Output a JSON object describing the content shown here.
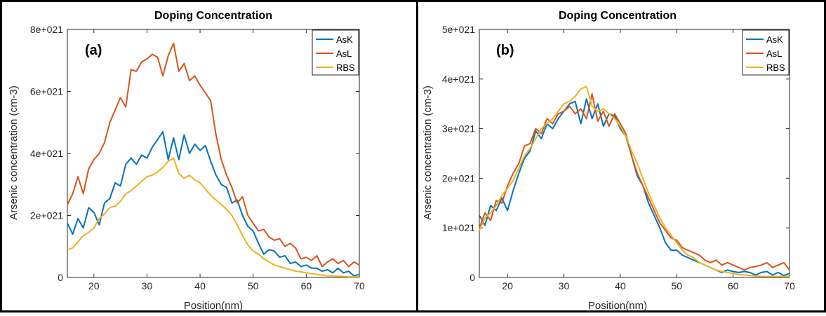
{
  "colors": {
    "AsK": "#0072BD",
    "AsL": "#D95319",
    "RBS": "#EDB120",
    "border": "#000000",
    "axis": "#262626"
  },
  "chart_data": [
    {
      "type": "line",
      "panel_label": "(a)",
      "title": "Doping Concentration",
      "xlabel": "Position(nm)",
      "ylabel": "Arsenic concentration (cm-3)",
      "xlim": [
        15,
        70
      ],
      "ylim": [
        0,
        8e+21
      ],
      "xticks": [
        20,
        30,
        40,
        50,
        60,
        70
      ],
      "xtick_labels": [
        "20",
        "30",
        "40",
        "50",
        "60",
        "70"
      ],
      "yticks": [
        0,
        2e+21,
        4e+21,
        6e+21,
        8e+21
      ],
      "ytick_labels": [
        "0",
        "2e+021",
        "4e+021",
        "6e+021",
        "8e+021"
      ],
      "legend_position": "top-right",
      "grid": false,
      "series": [
        {
          "name": "AsK",
          "x": [
            15,
            16,
            17,
            18,
            19,
            20,
            21,
            22,
            23,
            24,
            25,
            26,
            27,
            28,
            29,
            30,
            31,
            32,
            33,
            34,
            35,
            36,
            37,
            38,
            39,
            40,
            41,
            42,
            43,
            44,
            45,
            46,
            47,
            48,
            49,
            50,
            51,
            52,
            53,
            54,
            55,
            56,
            57,
            58,
            59,
            60,
            61,
            62,
            63,
            64,
            65,
            66,
            67,
            68,
            69,
            70
          ],
          "y": [
            1.75,
            1.4,
            1.9,
            1.6,
            2.25,
            2.1,
            1.7,
            2.4,
            2.55,
            3.05,
            2.95,
            3.65,
            3.85,
            3.65,
            3.95,
            3.85,
            4.2,
            4.45,
            4.7,
            3.8,
            4.5,
            3.8,
            4.6,
            4.0,
            4.3,
            4.1,
            4.25,
            3.75,
            3.3,
            3.0,
            2.9,
            2.4,
            2.5,
            2.0,
            1.65,
            1.5,
            1.1,
            0.75,
            0.9,
            0.85,
            0.65,
            0.7,
            0.45,
            0.5,
            0.35,
            0.4,
            0.3,
            0.3,
            0.2,
            0.25,
            0.15,
            0.3,
            0.15,
            0.2,
            0.05,
            0.1
          ]
        },
        {
          "name": "AsL",
          "x": [
            15,
            16,
            17,
            18,
            19,
            20,
            21,
            22,
            23,
            24,
            25,
            26,
            27,
            28,
            29,
            30,
            31,
            32,
            33,
            34,
            35,
            36,
            37,
            38,
            39,
            40,
            41,
            42,
            43,
            44,
            45,
            46,
            47,
            48,
            49,
            50,
            51,
            52,
            53,
            54,
            55,
            56,
            57,
            58,
            59,
            60,
            61,
            62,
            63,
            64,
            65,
            66,
            67,
            68,
            69,
            70
          ],
          "y": [
            2.35,
            2.7,
            3.25,
            2.7,
            3.5,
            3.8,
            4.0,
            4.35,
            5.0,
            5.4,
            5.8,
            5.5,
            6.7,
            6.65,
            6.95,
            7.05,
            7.2,
            7.1,
            6.5,
            7.15,
            7.55,
            6.65,
            6.9,
            6.35,
            6.5,
            6.2,
            5.95,
            5.7,
            4.6,
            3.8,
            3.3,
            2.9,
            2.4,
            2.6,
            2.0,
            1.75,
            1.5,
            1.55,
            1.3,
            1.2,
            1.25,
            1.0,
            1.1,
            0.95,
            0.6,
            0.65,
            0.55,
            0.7,
            0.35,
            0.5,
            0.6,
            0.45,
            0.55,
            0.35,
            0.5,
            0.4
          ]
        },
        {
          "name": "RBS",
          "x": [
            15,
            16,
            17,
            18,
            19,
            20,
            21,
            22,
            23,
            24,
            25,
            26,
            27,
            28,
            29,
            30,
            31,
            32,
            33,
            34,
            35,
            36,
            37,
            38,
            39,
            40,
            41,
            42,
            43,
            44,
            45,
            46,
            47,
            48,
            49,
            50,
            51,
            52,
            53,
            54,
            55,
            56,
            57,
            58,
            59,
            60,
            61,
            62,
            63,
            64,
            65,
            66,
            67,
            68,
            69,
            70
          ],
          "y": [
            0.9,
            0.95,
            1.15,
            1.35,
            1.45,
            1.6,
            1.9,
            2.05,
            2.25,
            2.3,
            2.45,
            2.7,
            2.8,
            2.95,
            3.1,
            3.25,
            3.3,
            3.4,
            3.55,
            3.75,
            3.85,
            3.35,
            3.2,
            3.3,
            3.15,
            3.05,
            2.85,
            2.65,
            2.5,
            2.35,
            2.2,
            2.0,
            1.7,
            1.35,
            1.05,
            0.85,
            0.75,
            0.6,
            0.5,
            0.4,
            0.35,
            0.3,
            0.25,
            0.2,
            0.18,
            0.15,
            0.12,
            0.1,
            0.08,
            0.05,
            0.05,
            0.04,
            0.03,
            0.02,
            0.02,
            0.02
          ]
        }
      ],
      "value_scale": 1e+21
    },
    {
      "type": "line",
      "panel_label": "(b)",
      "title": "Doping Concentration",
      "xlabel": "Position(nm)",
      "ylabel": "Arsenic concentration (cm-3)",
      "xlim": [
        15,
        70
      ],
      "ylim": [
        0,
        5e+21
      ],
      "xticks": [
        20,
        30,
        40,
        50,
        60,
        70
      ],
      "xtick_labels": [
        "20",
        "30",
        "40",
        "50",
        "60",
        "70"
      ],
      "yticks": [
        0,
        1e+21,
        2e+21,
        3e+21,
        4e+21,
        5e+21
      ],
      "ytick_labels": [
        "0",
        "1e+021",
        "2e+021",
        "3e+021",
        "4e+021",
        "5e+021"
      ],
      "legend_position": "top-right",
      "grid": false,
      "series": [
        {
          "name": "AsK",
          "x": [
            15,
            16,
            17,
            18,
            19,
            20,
            21,
            22,
            23,
            24,
            25,
            26,
            27,
            28,
            29,
            30,
            31,
            32,
            33,
            34,
            35,
            36,
            37,
            38,
            39,
            40,
            41,
            42,
            43,
            44,
            45,
            46,
            47,
            48,
            49,
            50,
            51,
            52,
            53,
            54,
            55,
            56,
            57,
            58,
            59,
            60,
            61,
            62,
            63,
            64,
            65,
            66,
            67,
            68,
            69,
            70
          ],
          "y": [
            1.25,
            1.05,
            1.45,
            1.35,
            1.6,
            1.35,
            1.75,
            2.1,
            2.4,
            2.55,
            2.95,
            2.8,
            3.1,
            3.0,
            3.2,
            3.35,
            3.5,
            3.55,
            3.1,
            3.6,
            3.2,
            3.5,
            3.05,
            3.3,
            3.25,
            3.0,
            2.85,
            2.45,
            2.05,
            1.85,
            1.5,
            1.25,
            1.0,
            0.7,
            0.55,
            0.55,
            0.45,
            0.4,
            0.35,
            0.3,
            0.25,
            0.2,
            0.15,
            0.1,
            0.15,
            0.12,
            0.1,
            0.12,
            0.1,
            0.05,
            0.1,
            0.12,
            0.05,
            0.1,
            0.04,
            0.08
          ]
        },
        {
          "name": "AsL",
          "x": [
            15,
            16,
            17,
            18,
            19,
            20,
            21,
            22,
            23,
            24,
            25,
            26,
            27,
            28,
            29,
            30,
            31,
            32,
            33,
            34,
            35,
            36,
            37,
            38,
            39,
            40,
            41,
            42,
            43,
            44,
            45,
            46,
            47,
            48,
            49,
            50,
            51,
            52,
            53,
            54,
            55,
            56,
            57,
            58,
            59,
            60,
            61,
            62,
            63,
            64,
            65,
            66,
            67,
            68,
            69,
            70
          ],
          "y": [
            1.0,
            1.3,
            1.15,
            1.55,
            1.5,
            1.85,
            2.1,
            2.3,
            2.65,
            2.7,
            3.0,
            2.9,
            3.2,
            3.1,
            3.3,
            3.35,
            3.45,
            3.3,
            3.4,
            3.2,
            3.7,
            3.15,
            3.35,
            3.05,
            3.3,
            3.1,
            2.9,
            2.45,
            2.1,
            1.85,
            1.6,
            1.35,
            1.1,
            0.95,
            0.8,
            0.75,
            0.6,
            0.55,
            0.5,
            0.45,
            0.35,
            0.3,
            0.35,
            0.25,
            0.3,
            0.25,
            0.2,
            0.15,
            0.2,
            0.22,
            0.25,
            0.3,
            0.2,
            0.25,
            0.3,
            0.15
          ]
        },
        {
          "name": "RBS",
          "x": [
            15,
            16,
            17,
            18,
            19,
            20,
            21,
            22,
            23,
            24,
            25,
            26,
            27,
            28,
            29,
            30,
            31,
            32,
            33,
            34,
            35,
            36,
            37,
            38,
            39,
            40,
            41,
            42,
            43,
            44,
            45,
            46,
            47,
            48,
            49,
            50,
            51,
            52,
            53,
            54,
            55,
            56,
            57,
            58,
            59,
            60,
            61,
            62,
            63,
            64,
            65,
            66,
            67,
            68,
            69,
            70
          ],
          "y": [
            0.95,
            1.2,
            1.3,
            1.45,
            1.65,
            1.8,
            1.95,
            2.2,
            2.45,
            2.6,
            2.8,
            3.0,
            3.1,
            3.2,
            3.35,
            3.5,
            3.55,
            3.65,
            3.8,
            3.85,
            3.45,
            3.35,
            3.4,
            3.3,
            3.2,
            3.05,
            2.85,
            2.55,
            2.3,
            2.0,
            1.7,
            1.45,
            1.2,
            1.0,
            0.85,
            0.7,
            0.55,
            0.45,
            0.4,
            0.3,
            0.25,
            0.2,
            0.15,
            0.12,
            0.1,
            0.08,
            0.06,
            0.05,
            0.04,
            0.03,
            0.02,
            0.02,
            0.02,
            0.02,
            0.02,
            0.02
          ]
        }
      ],
      "value_scale": 1e+21
    }
  ]
}
